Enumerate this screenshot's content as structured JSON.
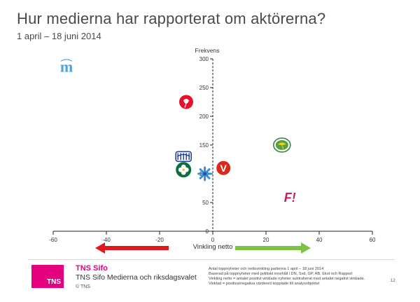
{
  "title": "Hur medierna har rapporterat om aktörerna?",
  "subtitle": "1 april – 18 juni 2014",
  "chart_data": {
    "type": "scatter",
    "xlabel": "Vinkling netto",
    "ylabel": "Frekvens",
    "xlim": [
      -60,
      60
    ],
    "ylim": [
      0,
      300
    ],
    "x_ticks": [
      -60,
      -40,
      -20,
      0,
      20,
      40,
      60
    ],
    "y_ticks": [
      0,
      50,
      100,
      150,
      200,
      250,
      300
    ],
    "points": [
      {
        "name": "m",
        "icon": "moderaterna-logo",
        "x": -55,
        "y": 285,
        "color": "#4aa3df"
      },
      {
        "name": "s",
        "icon": "socialdemokraterna-rose-logo",
        "x": -10,
        "y": 225,
        "color": "#e8112d"
      },
      {
        "name": "kd",
        "icon": "kristdemokraterna-logo",
        "x": -11,
        "y": 130,
        "color": "#1f3b8a"
      },
      {
        "name": "c",
        "icon": "centerpartiet-clover-logo",
        "x": -11,
        "y": 107,
        "color": "#0b6e3b"
      },
      {
        "name": "fp",
        "icon": "folkpartiet-cornflower-logo",
        "x": -3,
        "y": 100,
        "color": "#3a8fd6"
      },
      {
        "name": "v",
        "icon": "vansterpartiet-logo",
        "x": 4,
        "y": 110,
        "color": "#da291c"
      },
      {
        "name": "mp",
        "icon": "miljopartiet-sunflower-logo",
        "x": 26,
        "y": 150,
        "color": "#53a045"
      },
      {
        "name": "fi",
        "icon": "feministiskt-initiativ-logo",
        "x": 29,
        "y": 60,
        "color": "#cd1b68"
      }
    ],
    "arrows": {
      "negative_color": "#e3161b",
      "positive_color": "#7dc242"
    },
    "grid": false
  },
  "footer": {
    "logo_text": "TNS",
    "brand": "TNS Sifo",
    "report": "TNS Sifo Medierna och riksdagsvalet",
    "copyright": "© TNS",
    "notes": [
      "Antal toppnyheter och nettovinkling partierna 1 april – 18 juni 2014",
      "Baserad på toppnyheter med politiskt innehåll i DN, Svd, GP, AB, Ekot och Rapport",
      "Vinkling netto = antalet positivt vinklade nyheter subtraherat med antalet negativt vinklade.",
      "Vinklad = positiva/negativa värdeord kopplade till analysobjektet"
    ],
    "page": "12"
  }
}
